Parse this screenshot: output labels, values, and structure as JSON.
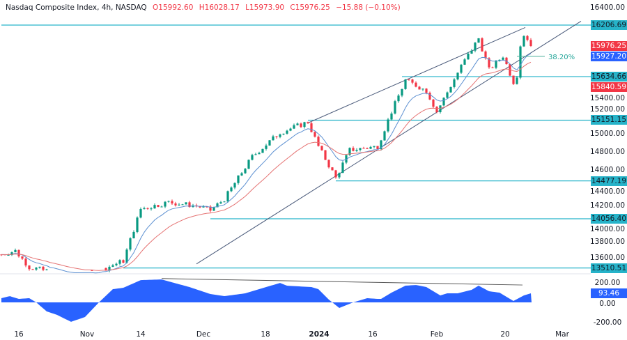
{
  "legend": {
    "title": "Nasdaq Composite Index, 4h, NASDAQ",
    "open": "O15992.60",
    "high": "H16028.17",
    "low": "L15973.90",
    "close": "C15976.25",
    "change": "−15.88 (−0.10%)"
  },
  "colors": {
    "up": "#089981",
    "down": "#f23645",
    "level": "#26b3c9",
    "ema_fast": "#5b8fd1",
    "ema_slow": "#e57373",
    "osc": "#2962ff",
    "channel": "#4a5a7a"
  },
  "price_axis": [
    "16400.00",
    "15400.00",
    "15200.00",
    "15000.00",
    "14800.00",
    "14600.00",
    "14400.00",
    "14200.00",
    "14000.00",
    "13800.00",
    "13600.00"
  ],
  "price_axis_values": [
    16400,
    15400,
    15200,
    15000,
    14800,
    14600,
    14400,
    14200,
    14000,
    13800,
    13600
  ],
  "osc_axis": [
    {
      "v": 200,
      "t": "200.00"
    },
    {
      "v": 0,
      "t": "0.00"
    },
    {
      "v": -200,
      "t": "-200.00"
    }
  ],
  "levels": [
    {
      "value": 16206.69,
      "label": "16206.69",
      "from_bar": 0
    },
    {
      "value": 15634.66,
      "label": "15634.66",
      "from_bar": 115
    },
    {
      "value": 15151.15,
      "label": "15151.15",
      "from_bar": 88
    },
    {
      "value": 14477.19,
      "label": "14477.19",
      "from_bar": 96
    },
    {
      "value": 14056.4,
      "label": "14056.40",
      "from_bar": 60
    },
    {
      "value": 13510.51,
      "label": "13510.51",
      "from_bar": 35
    }
  ],
  "price_tags": [
    {
      "value": 15976.25,
      "label": "15976.25",
      "color": "#f23645"
    },
    {
      "value": 15927.2,
      "label": "15927.20",
      "color": "#2962ff"
    },
    {
      "value": 15840.59,
      "label": "15840.59",
      "color": "#f23645"
    }
  ],
  "fib": {
    "label": "38.20%",
    "value": 15860
  },
  "osc_tag": {
    "value": 93.46,
    "label": "93.46"
  },
  "time_axis": [
    {
      "bar": 5,
      "t": "16",
      "bold": false
    },
    {
      "bar": 24.6,
      "t": "Nov",
      "bold": false
    },
    {
      "bar": 40,
      "t": "14",
      "bold": false
    },
    {
      "bar": 58,
      "t": "Dec",
      "bold": false
    },
    {
      "bar": 75.8,
      "t": "18",
      "bold": false
    },
    {
      "bar": 91.2,
      "t": "2024",
      "bold": true
    },
    {
      "bar": 106.6,
      "t": "16",
      "bold": false
    },
    {
      "bar": 125,
      "t": "Feb",
      "bold": false
    },
    {
      "bar": 144.6,
      "t": "20",
      "bold": false
    },
    {
      "bar": 161,
      "t": "Mar",
      "bold": false
    }
  ],
  "chart_data": {
    "type": "candlestick",
    "symbol": "Nasdaq Composite Index",
    "interval": "4h",
    "price_range": [
      13450,
      16450
    ],
    "keypoints_bar_price": [
      [
        0,
        13660
      ],
      [
        4,
        13700
      ],
      [
        8,
        13520
      ],
      [
        20,
        13420
      ],
      [
        28,
        13480
      ],
      [
        35,
        13590
      ],
      [
        40,
        14165
      ],
      [
        48,
        14240
      ],
      [
        56,
        14200
      ],
      [
        60,
        14150
      ],
      [
        64,
        14275
      ],
      [
        72,
        14745
      ],
      [
        80,
        15015
      ],
      [
        88,
        15130
      ],
      [
        91,
        14860
      ],
      [
        96,
        14510
      ],
      [
        100,
        14820
      ],
      [
        108,
        14860
      ],
      [
        112,
        15245
      ],
      [
        116,
        15595
      ],
      [
        122,
        15480
      ],
      [
        125,
        15245
      ],
      [
        132,
        15750
      ],
      [
        137,
        16060
      ],
      [
        140,
        15710
      ],
      [
        144,
        15865
      ],
      [
        146,
        15670
      ],
      [
        147.6,
        15520
      ],
      [
        149,
        15985
      ],
      [
        150,
        16100
      ],
      [
        152.4,
        15976
      ]
    ],
    "channel_upper": [
      [
        88,
        15120
      ],
      [
        150.4,
        16180
      ]
    ],
    "channel_lower": [
      [
        56,
        13555
      ],
      [
        166.4,
        16250
      ]
    ],
    "oscillator_keypoints": [
      [
        0,
        42
      ],
      [
        2.4,
        63
      ],
      [
        5,
        35
      ],
      [
        8,
        42
      ],
      [
        10,
        0
      ],
      [
        13,
        -91
      ],
      [
        16,
        -126
      ],
      [
        20,
        -196
      ],
      [
        24,
        -147
      ],
      [
        28,
        0
      ],
      [
        32,
        133
      ],
      [
        35,
        147
      ],
      [
        40,
        224
      ],
      [
        46,
        231
      ],
      [
        54,
        154
      ],
      [
        60,
        84
      ],
      [
        64,
        63
      ],
      [
        70,
        91
      ],
      [
        80,
        196
      ],
      [
        82,
        168
      ],
      [
        89,
        154
      ],
      [
        91,
        133
      ],
      [
        94,
        28
      ],
      [
        97,
        -56
      ],
      [
        101,
        0
      ],
      [
        105,
        42
      ],
      [
        108,
        35
      ],
      [
        109,
        35
      ],
      [
        112,
        98
      ],
      [
        116,
        168
      ],
      [
        119,
        175
      ],
      [
        122,
        154
      ],
      [
        124,
        112
      ],
      [
        126,
        70
      ],
      [
        128,
        91
      ],
      [
        131,
        91
      ],
      [
        135,
        126
      ],
      [
        137,
        168
      ],
      [
        140,
        112
      ],
      [
        143,
        98
      ],
      [
        147,
        14
      ],
      [
        150,
        70
      ],
      [
        152.2,
        93
      ]
    ],
    "divergence_line": [
      [
        46,
        240
      ],
      [
        149.6,
        175
      ]
    ]
  }
}
